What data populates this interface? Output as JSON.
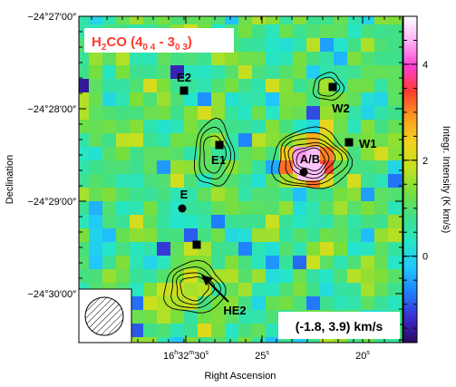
{
  "chart_data": {
    "type": "heatmap",
    "title": "H2CO (4",
    "title_parts": {
      "molecule_h": "H",
      "molecule_sub": "2",
      "molecule_rest": "CO (4",
      "j_lower_sub": "0 4",
      "dash": " - 3",
      "j_upper_sub": "0 3",
      "close": ")"
    },
    "title_color": "#ff3b2f",
    "xlabel": "Right Ascension",
    "ylabel": "Declination",
    "colorbar_label": "Integr. Intensity (K km/s)",
    "velocity_range_label": "(-1.8, 3.9) km/s",
    "x_ticks": [
      "16h32m30s",
      "25s",
      "20s"
    ],
    "x_tick_parts": [
      {
        "h": "16",
        "m": "32",
        "s": "30"
      },
      {
        "s": "25"
      },
      {
        "s": "20"
      }
    ],
    "y_ticks": [
      "−24°27′00″",
      "−24°28′00″",
      "−24°29′00″",
      "−24°30′00″"
    ],
    "colorbar_ticks": [
      "0",
      "2",
      "4"
    ],
    "colorbar_range": [
      -1.8,
      5.0
    ],
    "colormap": [
      "#2a0a5e",
      "#3b2bd0",
      "#1e7fff",
      "#21c6ff",
      "#25e6c9",
      "#3fe08a",
      "#78df3c",
      "#c8e01f",
      "#f3d21c",
      "#ff9a1e",
      "#ff3b2f",
      "#ff3fd0",
      "#ffb0f6",
      "#ffffff"
    ],
    "sources": [
      {
        "label": "E2",
        "marker": "square"
      },
      {
        "label": "W2",
        "marker": "square"
      },
      {
        "label": "W1",
        "marker": "square"
      },
      {
        "label": "E1",
        "marker": "square"
      },
      {
        "label": "A/B",
        "marker": "circle"
      },
      {
        "label": "E",
        "marker": "circle"
      },
      {
        "label": "HE2",
        "marker": "square",
        "arrow": true
      }
    ],
    "emission_peaks": [
      {
        "name": "A/B",
        "peak": 4.6
      },
      {
        "name": "HE2",
        "peak": 2.6
      },
      {
        "name": "E1",
        "peak": 1.7
      },
      {
        "name": "W2",
        "peak": 1.5
      }
    ],
    "contours": "black contour lines around A/B, HE2, E1 and W2",
    "beam": "hatched circle in lower-left box"
  }
}
